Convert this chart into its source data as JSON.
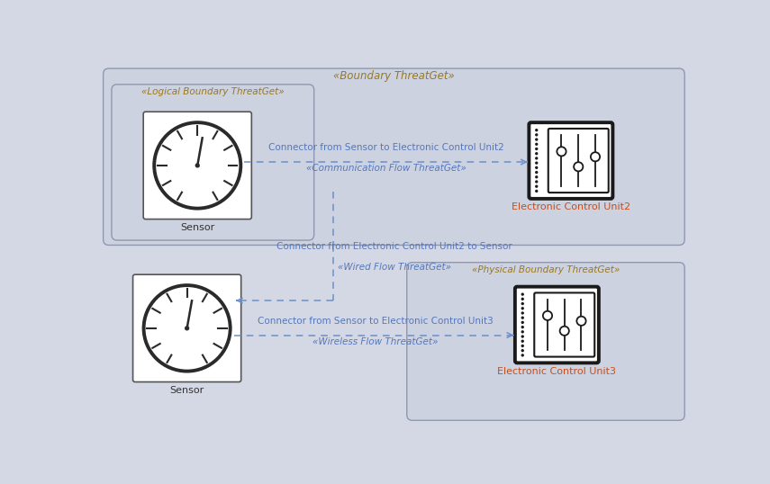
{
  "bg_color": "#d4d8e4",
  "boundary_outer_label": "«Boundary ThreatGet»",
  "boundary_logical_label": "«Logical Boundary ThreatGet»",
  "boundary_physical_label": "«Physical Boundary ThreatGet»",
  "conn1_label": "Connector from Sensor to Electronic Control Unit2",
  "conn1_sub": "«Communication Flow ThreatGet»",
  "conn2_label": "Connector from Electronic Control Unit2 to Sensor",
  "conn2_sub": "«Wired Flow ThreatGet»",
  "conn3_label": "Connector from Sensor to Electronic Control Unit3",
  "conn3_sub": "«Wireless Flow ThreatGet»",
  "sensor1_label": "Sensor",
  "sensor2_label": "Sensor",
  "ecu2_label": "Electronic Control Unit2",
  "ecu3_label": "Electronic Control Unit3",
  "line_color": "#6b8fc9",
  "text_color": "#5577bb",
  "label_color": "#9b7820",
  "ecu_label_color": "#c05020",
  "sensor_label_color": "#333333",
  "boundary_face": "#cdd2e0",
  "boundary_edge": "#9098b0",
  "element_bg": "#ffffff",
  "element_edge": "#333333"
}
